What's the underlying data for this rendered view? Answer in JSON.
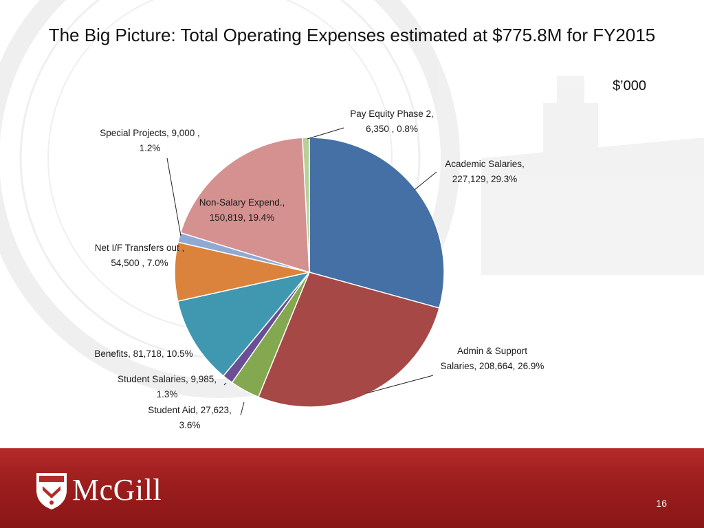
{
  "slide": {
    "title": "The Big Picture:  Total Operating Expenses estimated at $775.8M for FY2015",
    "unit_label": "$’000",
    "brand": "McGill",
    "page_number": "16"
  },
  "chart_data": {
    "type": "pie",
    "title": "",
    "units": "$’000",
    "start_angle_deg": -90,
    "direction": "clockwise",
    "slices": [
      {
        "name": "Academic Salaries",
        "value": 227129,
        "percent": 29.3,
        "color": "#4470a5",
        "label_lines": [
          "Academic Salaries,",
          "227,129, 29.3%"
        ]
      },
      {
        "name": "Admin & Support Salaries",
        "value": 208664,
        "percent": 26.9,
        "color": "#a64846",
        "label_lines": [
          "Admin & Support",
          "Salaries, 208,664, 26.9%"
        ]
      },
      {
        "name": "Student Aid",
        "value": 27623,
        "percent": 3.6,
        "color": "#84a850",
        "label_lines": [
          "Student Aid, 27,623,",
          "3.6%"
        ]
      },
      {
        "name": "Student Salaries",
        "value": 9985,
        "percent": 1.3,
        "color": "#6a4f95",
        "label_lines": [
          "Student Salaries, 9,985,",
          "1.3%"
        ]
      },
      {
        "name": "Benefits",
        "value": 81718,
        "percent": 10.5,
        "color": "#3f97b0",
        "label_lines": [
          "Benefits, 81,718, 10.5%"
        ]
      },
      {
        "name": "Net I/F Transfers out",
        "value": 54500,
        "percent": 7.0,
        "color": "#db833c",
        "label_lines": [
          "Net I/F Transfers out ,",
          "54,500 , 7.0%"
        ]
      },
      {
        "name": "Special Projects",
        "value": 9000,
        "percent": 1.2,
        "color": "#8fa9d4",
        "label_lines": [
          "Special Projects, 9,000 ,",
          "1.2%"
        ]
      },
      {
        "name": "Non-Salary Expend.",
        "value": 150819,
        "percent": 19.4,
        "color": "#d49190",
        "label_lines": [
          "Non-Salary Expend.,",
          "150,819, 19.4%"
        ]
      },
      {
        "name": "Pay Equity Phase 2",
        "value": 6350,
        "percent": 0.8,
        "color": "#b7d096",
        "label_lines": [
          "Pay Equity Phase 2,",
          "6,350 , 0.8%"
        ]
      }
    ]
  }
}
